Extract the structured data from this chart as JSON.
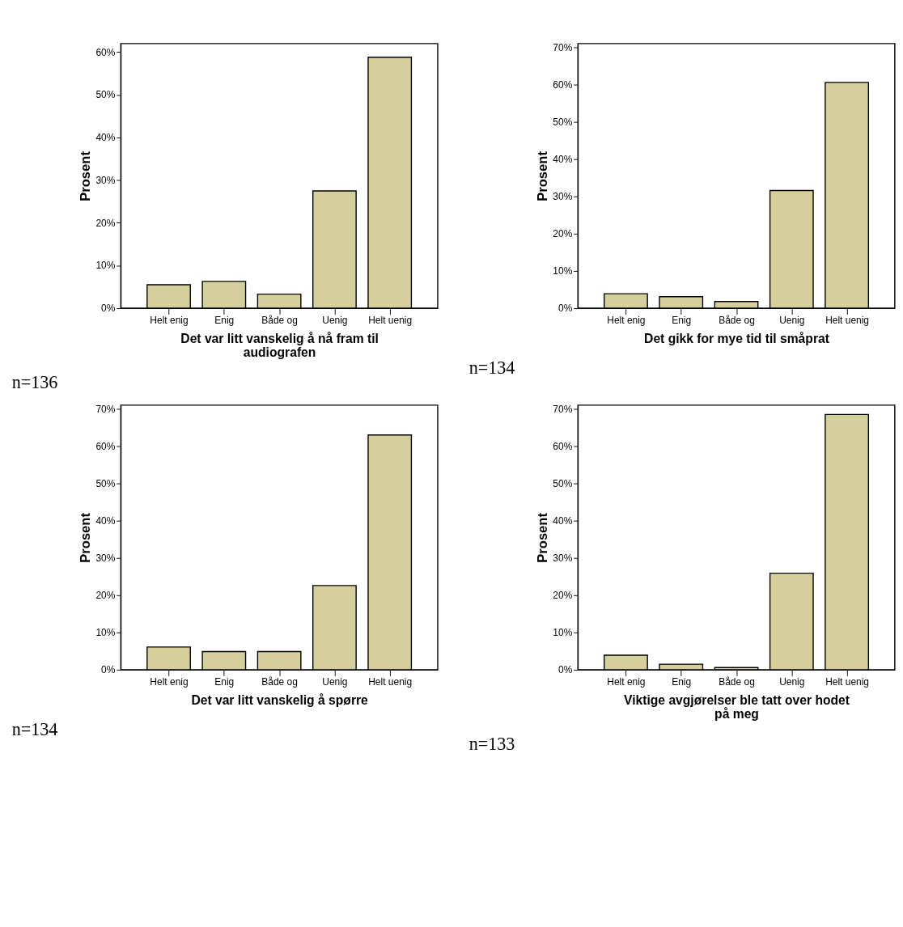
{
  "chart_data": [
    {
      "type": "bar",
      "xlabel": "Det var litt vanskelig å nå fram til audiografen",
      "ylabel": "Prosent",
      "categories": [
        "Helt enig",
        "Enig",
        "Både og",
        "Uenig",
        "Helt uenig"
      ],
      "values": [
        5.5,
        6.3,
        3.3,
        27.5,
        58.8
      ],
      "color": "#d4cf9b",
      "ylim": [
        0,
        62
      ],
      "yticks": [
        {
          "value": 0,
          "label": "0%"
        },
        {
          "value": 10,
          "label": "10%"
        },
        {
          "value": 20,
          "label": "20%"
        },
        {
          "value": 30,
          "label": "30%"
        },
        {
          "value": 40,
          "label": "40%"
        },
        {
          "value": 50,
          "label": "50%"
        },
        {
          "value": 60,
          "label": "60%"
        }
      ],
      "grid": false,
      "annotations": [
        "n=136"
      ]
    },
    {
      "type": "bar",
      "xlabel": "Det gikk for mye tid til småprat",
      "ylabel": "Prosent",
      "categories": [
        "Helt enig",
        "Enig",
        "Både og",
        "Uenig",
        "Helt uenig"
      ],
      "values": [
        3.9,
        3.1,
        1.8,
        31.6,
        60.6
      ],
      "color": "#d4cf9b",
      "ylim": [
        0,
        71
      ],
      "yticks": [
        {
          "value": 0,
          "label": "0%"
        },
        {
          "value": 10,
          "label": "10%"
        },
        {
          "value": 20,
          "label": "20%"
        },
        {
          "value": 30,
          "label": "30%"
        },
        {
          "value": 40,
          "label": "40%"
        },
        {
          "value": 50,
          "label": "50%"
        },
        {
          "value": 60,
          "label": "60%"
        },
        {
          "value": 70,
          "label": "70%"
        }
      ],
      "grid": false,
      "annotations": [
        "n=134"
      ]
    },
    {
      "type": "bar",
      "xlabel": "Det var litt vanskelig å spørre",
      "ylabel": "Prosent",
      "categories": [
        "Helt enig",
        "Enig",
        "Både og",
        "Uenig",
        "Helt uenig"
      ],
      "values": [
        6.1,
        4.9,
        4.9,
        22.6,
        63.0
      ],
      "color": "#d4cf9b",
      "ylim": [
        0,
        71
      ],
      "yticks": [
        {
          "value": 0,
          "label": "0%"
        },
        {
          "value": 10,
          "label": "10%"
        },
        {
          "value": 20,
          "label": "20%"
        },
        {
          "value": 30,
          "label": "30%"
        },
        {
          "value": 40,
          "label": "40%"
        },
        {
          "value": 50,
          "label": "50%"
        },
        {
          "value": 60,
          "label": "60%"
        },
        {
          "value": 70,
          "label": "70%"
        }
      ],
      "grid": false,
      "annotations": [
        "n=134"
      ]
    },
    {
      "type": "bar",
      "xlabel": "Viktige avgjørelser ble tatt over hodet på meg",
      "ylabel": "Prosent",
      "categories": [
        "Helt enig",
        "Enig",
        "Både og",
        "Uenig",
        "Helt uenig"
      ],
      "values": [
        3.9,
        1.5,
        0.6,
        25.9,
        68.5
      ],
      "color": "#d4cf9b",
      "ylim": [
        0,
        71
      ],
      "yticks": [
        {
          "value": 0,
          "label": "0%"
        },
        {
          "value": 10,
          "label": "10%"
        },
        {
          "value": 20,
          "label": "20%"
        },
        {
          "value": 30,
          "label": "30%"
        },
        {
          "value": 40,
          "label": "40%"
        },
        {
          "value": 50,
          "label": "50%"
        },
        {
          "value": 60,
          "label": "60%"
        },
        {
          "value": 70,
          "label": "70%"
        }
      ],
      "grid": false,
      "annotations": [
        "n=133"
      ]
    }
  ]
}
